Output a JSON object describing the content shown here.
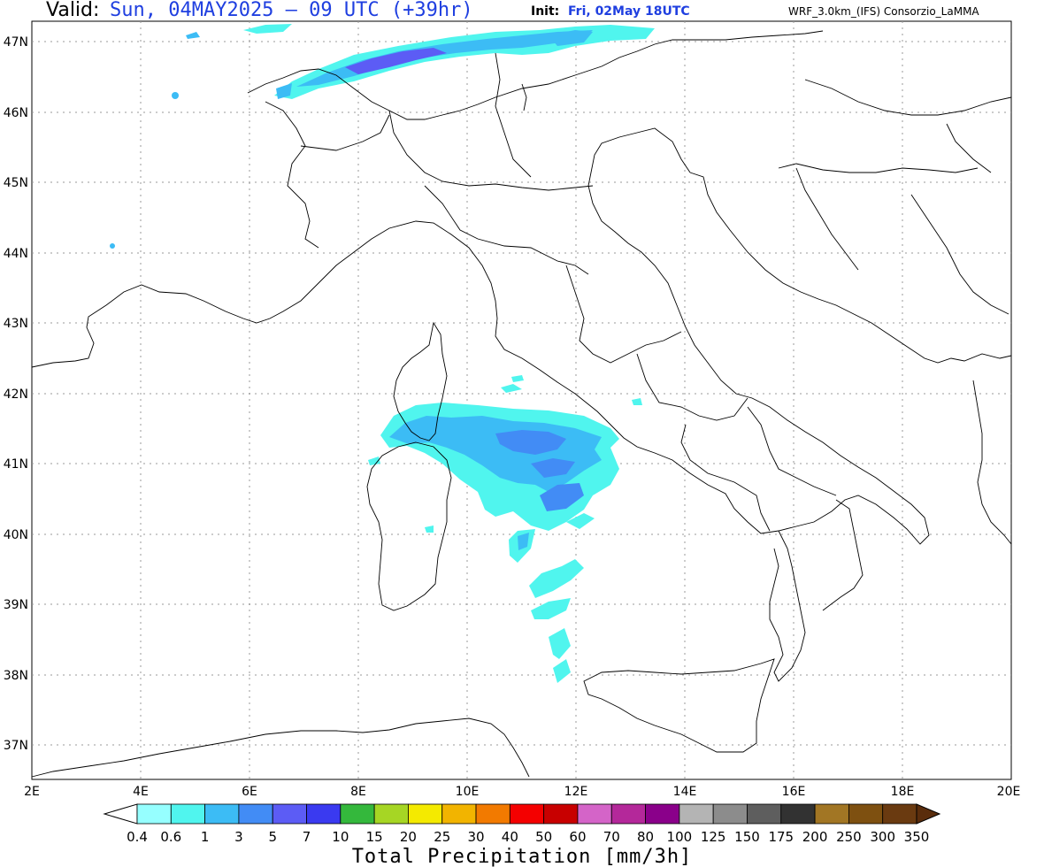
{
  "header": {
    "valid_label": "Valid:",
    "valid_value": "Sun, 04MAY2025 – 09 UTC (+39hr)",
    "init_label": "Init:",
    "init_value": "Fri, 02May 18UTC",
    "model_label": "WRF_3.0km_(IFS)  Consorzio_LaMMA"
  },
  "map": {
    "lat_labels": [
      "47N",
      "46N",
      "45N",
      "44N",
      "43N",
      "42N",
      "41N",
      "40N",
      "39N",
      "38N",
      "37N"
    ],
    "lon_labels": [
      "2E",
      "4E",
      "6E",
      "8E",
      "10E",
      "12E",
      "14E",
      "16E",
      "18E",
      "20E"
    ],
    "grid": "dotted",
    "precip_field": "Total Precipitation mm/3h"
  },
  "colorbar": {
    "title": "Total Precipitation [mm/3h]",
    "levels": [
      "0.4",
      "0.6",
      "1",
      "3",
      "5",
      "7",
      "10",
      "15",
      "20",
      "25",
      "30",
      "40",
      "50",
      "60",
      "70",
      "80",
      "100",
      "125",
      "150",
      "175",
      "200",
      "250",
      "300",
      "350"
    ],
    "colors": [
      "#96ffff",
      "#50f5ee",
      "#3cbcf5",
      "#428cf5",
      "#5c5cf5",
      "#3a3af0",
      "#34b83c",
      "#a6d624",
      "#f4ea00",
      "#f2b400",
      "#f27a00",
      "#f40000",
      "#c80000",
      "#d464c8",
      "#b4289a",
      "#8a008a",
      "#b4b4b4",
      "#8c8c8c",
      "#5e5e5e",
      "#323232",
      "#a27624",
      "#7e5010",
      "#6a3a10"
    ],
    "left_arrow_color": "#ffffff",
    "right_arrow_color": "#5a2d0c"
  }
}
